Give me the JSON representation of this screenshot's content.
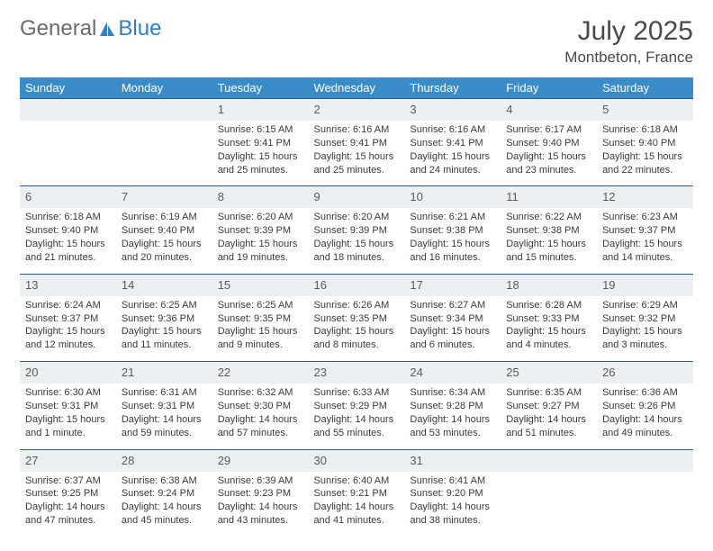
{
  "logo": {
    "text_general": "General",
    "text_blue": "Blue",
    "icon_color": "#2f7fc2"
  },
  "title": "July 2025",
  "location": "Montbeton, France",
  "colors": {
    "header_bg": "#3a8cc9",
    "header_fg": "#ffffff",
    "daynum_bg": "#edf0f2",
    "daynum_fg": "#5a5a5a",
    "row_border": "#2b5b84",
    "body_text": "#3a3a3a"
  },
  "day_headers": [
    "Sunday",
    "Monday",
    "Tuesday",
    "Wednesday",
    "Thursday",
    "Friday",
    "Saturday"
  ],
  "weeks": [
    [
      null,
      null,
      {
        "n": "1",
        "sr": "Sunrise: 6:15 AM",
        "ss": "Sunset: 9:41 PM",
        "dl": "Daylight: 15 hours and 25 minutes."
      },
      {
        "n": "2",
        "sr": "Sunrise: 6:16 AM",
        "ss": "Sunset: 9:41 PM",
        "dl": "Daylight: 15 hours and 25 minutes."
      },
      {
        "n": "3",
        "sr": "Sunrise: 6:16 AM",
        "ss": "Sunset: 9:41 PM",
        "dl": "Daylight: 15 hours and 24 minutes."
      },
      {
        "n": "4",
        "sr": "Sunrise: 6:17 AM",
        "ss": "Sunset: 9:40 PM",
        "dl": "Daylight: 15 hours and 23 minutes."
      },
      {
        "n": "5",
        "sr": "Sunrise: 6:18 AM",
        "ss": "Sunset: 9:40 PM",
        "dl": "Daylight: 15 hours and 22 minutes."
      }
    ],
    [
      {
        "n": "6",
        "sr": "Sunrise: 6:18 AM",
        "ss": "Sunset: 9:40 PM",
        "dl": "Daylight: 15 hours and 21 minutes."
      },
      {
        "n": "7",
        "sr": "Sunrise: 6:19 AM",
        "ss": "Sunset: 9:40 PM",
        "dl": "Daylight: 15 hours and 20 minutes."
      },
      {
        "n": "8",
        "sr": "Sunrise: 6:20 AM",
        "ss": "Sunset: 9:39 PM",
        "dl": "Daylight: 15 hours and 19 minutes."
      },
      {
        "n": "9",
        "sr": "Sunrise: 6:20 AM",
        "ss": "Sunset: 9:39 PM",
        "dl": "Daylight: 15 hours and 18 minutes."
      },
      {
        "n": "10",
        "sr": "Sunrise: 6:21 AM",
        "ss": "Sunset: 9:38 PM",
        "dl": "Daylight: 15 hours and 16 minutes."
      },
      {
        "n": "11",
        "sr": "Sunrise: 6:22 AM",
        "ss": "Sunset: 9:38 PM",
        "dl": "Daylight: 15 hours and 15 minutes."
      },
      {
        "n": "12",
        "sr": "Sunrise: 6:23 AM",
        "ss": "Sunset: 9:37 PM",
        "dl": "Daylight: 15 hours and 14 minutes."
      }
    ],
    [
      {
        "n": "13",
        "sr": "Sunrise: 6:24 AM",
        "ss": "Sunset: 9:37 PM",
        "dl": "Daylight: 15 hours and 12 minutes."
      },
      {
        "n": "14",
        "sr": "Sunrise: 6:25 AM",
        "ss": "Sunset: 9:36 PM",
        "dl": "Daylight: 15 hours and 11 minutes."
      },
      {
        "n": "15",
        "sr": "Sunrise: 6:25 AM",
        "ss": "Sunset: 9:35 PM",
        "dl": "Daylight: 15 hours and 9 minutes."
      },
      {
        "n": "16",
        "sr": "Sunrise: 6:26 AM",
        "ss": "Sunset: 9:35 PM",
        "dl": "Daylight: 15 hours and 8 minutes."
      },
      {
        "n": "17",
        "sr": "Sunrise: 6:27 AM",
        "ss": "Sunset: 9:34 PM",
        "dl": "Daylight: 15 hours and 6 minutes."
      },
      {
        "n": "18",
        "sr": "Sunrise: 6:28 AM",
        "ss": "Sunset: 9:33 PM",
        "dl": "Daylight: 15 hours and 4 minutes."
      },
      {
        "n": "19",
        "sr": "Sunrise: 6:29 AM",
        "ss": "Sunset: 9:32 PM",
        "dl": "Daylight: 15 hours and 3 minutes."
      }
    ],
    [
      {
        "n": "20",
        "sr": "Sunrise: 6:30 AM",
        "ss": "Sunset: 9:31 PM",
        "dl": "Daylight: 15 hours and 1 minute."
      },
      {
        "n": "21",
        "sr": "Sunrise: 6:31 AM",
        "ss": "Sunset: 9:31 PM",
        "dl": "Daylight: 14 hours and 59 minutes."
      },
      {
        "n": "22",
        "sr": "Sunrise: 6:32 AM",
        "ss": "Sunset: 9:30 PM",
        "dl": "Daylight: 14 hours and 57 minutes."
      },
      {
        "n": "23",
        "sr": "Sunrise: 6:33 AM",
        "ss": "Sunset: 9:29 PM",
        "dl": "Daylight: 14 hours and 55 minutes."
      },
      {
        "n": "24",
        "sr": "Sunrise: 6:34 AM",
        "ss": "Sunset: 9:28 PM",
        "dl": "Daylight: 14 hours and 53 minutes."
      },
      {
        "n": "25",
        "sr": "Sunrise: 6:35 AM",
        "ss": "Sunset: 9:27 PM",
        "dl": "Daylight: 14 hours and 51 minutes."
      },
      {
        "n": "26",
        "sr": "Sunrise: 6:36 AM",
        "ss": "Sunset: 9:26 PM",
        "dl": "Daylight: 14 hours and 49 minutes."
      }
    ],
    [
      {
        "n": "27",
        "sr": "Sunrise: 6:37 AM",
        "ss": "Sunset: 9:25 PM",
        "dl": "Daylight: 14 hours and 47 minutes."
      },
      {
        "n": "28",
        "sr": "Sunrise: 6:38 AM",
        "ss": "Sunset: 9:24 PM",
        "dl": "Daylight: 14 hours and 45 minutes."
      },
      {
        "n": "29",
        "sr": "Sunrise: 6:39 AM",
        "ss": "Sunset: 9:23 PM",
        "dl": "Daylight: 14 hours and 43 minutes."
      },
      {
        "n": "30",
        "sr": "Sunrise: 6:40 AM",
        "ss": "Sunset: 9:21 PM",
        "dl": "Daylight: 14 hours and 41 minutes."
      },
      {
        "n": "31",
        "sr": "Sunrise: 6:41 AM",
        "ss": "Sunset: 9:20 PM",
        "dl": "Daylight: 14 hours and 38 minutes."
      },
      null,
      null
    ]
  ]
}
